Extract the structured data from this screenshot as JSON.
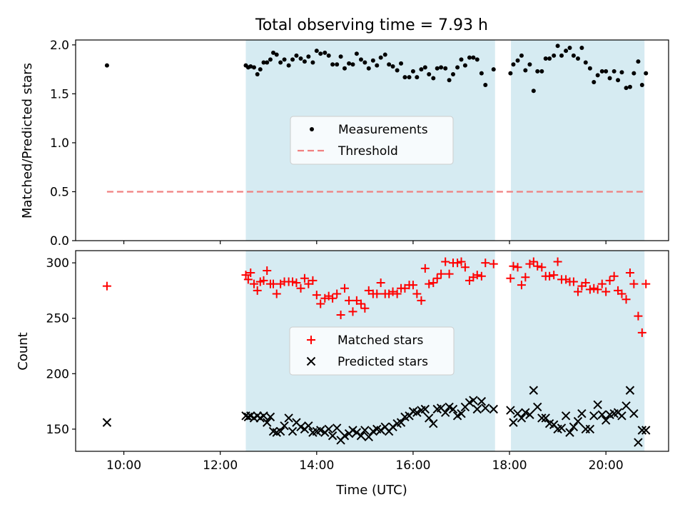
{
  "figure": {
    "title": "Total observing time = 7.93 h",
    "xlabel": "Time (UTC)",
    "x_ticks": [
      "10:00",
      "12:00",
      "14:00",
      "16:00",
      "18:00",
      "20:00"
    ]
  },
  "colors": {
    "span": "#add8e6",
    "measurement": "#000000",
    "threshold": "#f08080",
    "matched": "#ff0000",
    "predicted": "#000000"
  },
  "chart_data": [
    {
      "type": "scatter",
      "panel": "top",
      "ylabel": "Matched/Predicted stars",
      "x_unit": "hours UTC",
      "xlim": [
        9.0,
        21.3
      ],
      "ylim": [
        0.0,
        2.05
      ],
      "y_ticks": [
        0.0,
        0.5,
        1.0,
        1.5,
        2.0
      ],
      "y_tick_labels": [
        "0.0",
        "0.5",
        "1.0",
        "1.5",
        "2.0"
      ],
      "legend": {
        "position": "center",
        "labels": [
          "Measurements",
          "Threshold"
        ]
      },
      "threshold": {
        "name": "Threshold",
        "y": 0.5,
        "x_range": [
          9.65,
          20.8
        ]
      },
      "observing_spans": [
        [
          12.53,
          17.7
        ],
        [
          18.03,
          20.8
        ]
      ],
      "series": [
        {
          "name": "Measurements",
          "marker": "dot",
          "x": [
            9.65,
            12.53,
            12.58,
            12.63,
            12.7,
            12.77,
            12.83,
            12.9,
            12.97,
            13.04,
            13.1,
            13.17,
            13.25,
            13.33,
            13.42,
            13.5,
            13.58,
            13.67,
            13.75,
            13.83,
            13.92,
            14.0,
            14.08,
            14.17,
            14.25,
            14.33,
            14.42,
            14.5,
            14.58,
            14.67,
            14.75,
            14.83,
            14.92,
            15.0,
            15.08,
            15.17,
            15.25,
            15.33,
            15.42,
            15.5,
            15.58,
            15.67,
            15.75,
            15.83,
            15.92,
            16.0,
            16.08,
            16.17,
            16.25,
            16.33,
            16.42,
            16.5,
            16.58,
            16.67,
            16.75,
            16.83,
            16.92,
            17.0,
            17.08,
            17.17,
            17.25,
            17.33,
            17.42,
            17.5,
            17.67,
            18.02,
            18.08,
            18.17,
            18.25,
            18.33,
            18.42,
            18.5,
            18.58,
            18.67,
            18.75,
            18.83,
            18.92,
            19.0,
            19.08,
            19.17,
            19.25,
            19.33,
            19.42,
            19.5,
            19.58,
            19.67,
            19.75,
            19.83,
            19.92,
            20.0,
            20.08,
            20.17,
            20.25,
            20.33,
            20.42,
            20.5,
            20.58,
            20.67,
            20.75,
            20.83
          ],
          "y": [
            1.79,
            1.79,
            1.77,
            1.78,
            1.77,
            1.7,
            1.75,
            1.82,
            1.82,
            1.85,
            1.92,
            1.9,
            1.82,
            1.85,
            1.79,
            1.85,
            1.89,
            1.86,
            1.83,
            1.88,
            1.82,
            1.94,
            1.91,
            1.92,
            1.89,
            1.8,
            1.8,
            1.88,
            1.76,
            1.81,
            1.8,
            1.91,
            1.85,
            1.82,
            1.76,
            1.84,
            1.79,
            1.87,
            1.9,
            1.8,
            1.78,
            1.74,
            1.81,
            1.67,
            1.67,
            1.73,
            1.67,
            1.75,
            1.77,
            1.7,
            1.66,
            1.76,
            1.77,
            1.76,
            1.64,
            1.7,
            1.77,
            1.85,
            1.79,
            1.87,
            1.87,
            1.85,
            1.71,
            1.59,
            1.75,
            1.71,
            1.8,
            1.84,
            1.89,
            1.74,
            1.8,
            1.53,
            1.73,
            1.73,
            1.86,
            1.86,
            1.89,
            1.99,
            1.89,
            1.94,
            1.97,
            1.89,
            1.86,
            1.97,
            1.82,
            1.76,
            1.62,
            1.69,
            1.73,
            1.73,
            1.66,
            1.73,
            1.64,
            1.72,
            1.56,
            1.57,
            1.71,
            1.83,
            1.59,
            1.71
          ]
        }
      ]
    },
    {
      "type": "scatter",
      "panel": "bottom",
      "ylabel": "Count",
      "x_unit": "hours UTC",
      "xlim": [
        9.0,
        21.3
      ],
      "ylim": [
        130,
        311
      ],
      "y_ticks": [
        150,
        200,
        250,
        300
      ],
      "y_tick_labels": [
        "150",
        "200",
        "250",
        "300"
      ],
      "legend": {
        "position": "center",
        "labels": [
          "Matched stars",
          "Predicted stars"
        ]
      },
      "observing_spans": [
        [
          12.53,
          17.7
        ],
        [
          18.03,
          20.8
        ]
      ],
      "series": [
        {
          "name": "Matched stars",
          "marker": "plus",
          "x": [
            9.65,
            12.53,
            12.58,
            12.63,
            12.7,
            12.77,
            12.83,
            12.9,
            12.97,
            13.04,
            13.1,
            13.17,
            13.25,
            13.33,
            13.42,
            13.5,
            13.58,
            13.67,
            13.75,
            13.83,
            13.92,
            14.0,
            14.08,
            14.17,
            14.25,
            14.33,
            14.42,
            14.5,
            14.58,
            14.67,
            14.75,
            14.83,
            14.92,
            15.0,
            15.08,
            15.17,
            15.25,
            15.33,
            15.42,
            15.5,
            15.58,
            15.67,
            15.75,
            15.83,
            15.92,
            16.0,
            16.08,
            16.17,
            16.25,
            16.33,
            16.42,
            16.5,
            16.58,
            16.67,
            16.75,
            16.83,
            16.92,
            17.0,
            17.08,
            17.17,
            17.25,
            17.33,
            17.42,
            17.5,
            17.67,
            18.02,
            18.08,
            18.17,
            18.25,
            18.33,
            18.42,
            18.5,
            18.58,
            18.67,
            18.75,
            18.83,
            18.92,
            19.0,
            19.08,
            19.17,
            19.25,
            19.33,
            19.42,
            19.5,
            19.58,
            19.67,
            19.75,
            19.83,
            19.92,
            20.0,
            20.08,
            20.17,
            20.25,
            20.33,
            20.42,
            20.5,
            20.58,
            20.67,
            20.75,
            20.83
          ],
          "y": [
            279,
            289,
            285,
            291,
            281,
            275,
            283,
            284,
            293,
            281,
            281,
            272,
            281,
            283,
            283,
            283,
            282,
            277,
            286,
            281,
            284,
            271,
            263,
            268,
            270,
            268,
            272,
            253,
            277,
            266,
            256,
            266,
            263,
            259,
            275,
            272,
            272,
            282,
            272,
            272,
            274,
            272,
            277,
            277,
            280,
            280,
            272,
            266,
            295,
            281,
            282,
            286,
            290,
            301,
            290,
            300,
            300,
            301,
            296,
            284,
            287,
            289,
            288,
            300,
            299,
            286,
            297,
            296,
            280,
            287,
            299,
            301,
            297,
            296,
            288,
            288,
            289,
            301,
            285,
            285,
            283,
            283,
            274,
            279,
            282,
            276,
            277,
            276,
            281,
            274,
            284,
            288,
            275,
            272,
            267,
            291,
            281,
            252,
            237,
            281
          ],
          "ordering_note": ""
        },
        {
          "name": "Predicted stars",
          "marker": "x",
          "x": [
            9.65,
            12.53,
            12.58,
            12.63,
            12.7,
            12.77,
            12.83,
            12.9,
            12.97,
            13.04,
            13.1,
            13.17,
            13.25,
            13.33,
            13.42,
            13.5,
            13.58,
            13.67,
            13.75,
            13.83,
            13.92,
            14.0,
            14.08,
            14.17,
            14.25,
            14.33,
            14.42,
            14.5,
            14.58,
            14.67,
            14.75,
            14.83,
            14.92,
            15.0,
            15.08,
            15.17,
            15.25,
            15.33,
            15.42,
            15.5,
            15.58,
            15.67,
            15.75,
            15.83,
            15.92,
            16.0,
            16.08,
            16.17,
            16.25,
            16.33,
            16.42,
            16.5,
            16.58,
            16.67,
            16.75,
            16.83,
            16.92,
            17.0,
            17.08,
            17.17,
            17.25,
            17.33,
            17.42,
            17.5,
            17.67,
            18.02,
            18.08,
            18.17,
            18.25,
            18.33,
            18.42,
            18.5,
            18.58,
            18.67,
            18.75,
            18.83,
            18.92,
            19.0,
            19.08,
            19.17,
            19.25,
            19.33,
            19.42,
            19.5,
            19.58,
            19.67,
            19.75,
            19.83,
            19.92,
            20.0,
            20.08,
            20.17,
            20.25,
            20.33,
            20.42,
            20.5,
            20.58,
            20.67,
            20.75,
            20.83
          ],
          "y": [
            156,
            162,
            161,
            162,
            160,
            162,
            160,
            162,
            156,
            161,
            148,
            147,
            148,
            153,
            160,
            148,
            156,
            152,
            150,
            153,
            147,
            148,
            149,
            147,
            150,
            144,
            151,
            140,
            144,
            146,
            149,
            147,
            144,
            149,
            143,
            148,
            150,
            149,
            152,
            148,
            152,
            155,
            156,
            161,
            162,
            166,
            165,
            167,
            168,
            160,
            155,
            168,
            169,
            165,
            170,
            168,
            162,
            164,
            170,
            174,
            176,
            168,
            175,
            169,
            168,
            167,
            156,
            164,
            160,
            165,
            163,
            185,
            170,
            160,
            160,
            155,
            154,
            150,
            151,
            162,
            147,
            152,
            157,
            164,
            150,
            150,
            162,
            172,
            163,
            158,
            163,
            164,
            165,
            162,
            171,
            185,
            164,
            138,
            149,
            149
          ]
        }
      ]
    }
  ]
}
